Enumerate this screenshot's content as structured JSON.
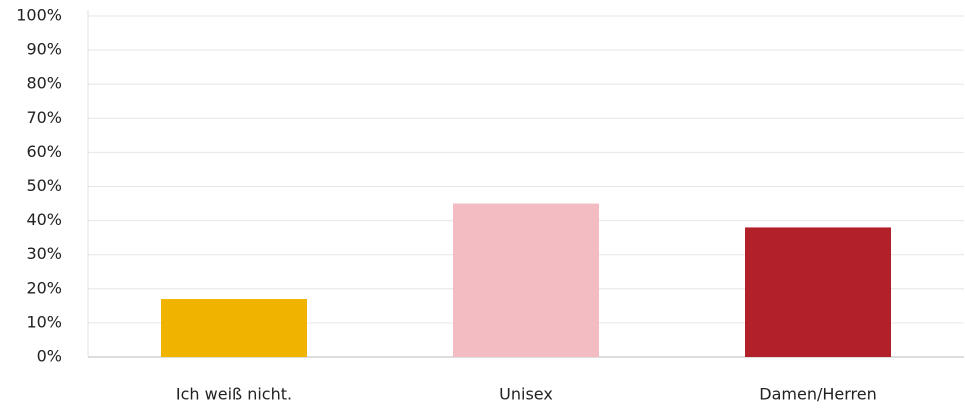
{
  "chart_data": {
    "type": "bar",
    "categories": [
      "Ich weiß nicht.",
      "Unisex",
      "Damen/Herren"
    ],
    "values": [
      17,
      45,
      38
    ],
    "colors": [
      "#f0b400",
      "#f2bcc2",
      "#b2202a"
    ],
    "ylim": [
      0,
      100
    ],
    "yticks": [
      {
        "value": 0,
        "label": "0%"
      },
      {
        "value": 10,
        "label": "10%"
      },
      {
        "value": 20,
        "label": "20%"
      },
      {
        "value": 30,
        "label": "30%"
      },
      {
        "value": 40,
        "label": "40%"
      },
      {
        "value": 50,
        "label": "50%"
      },
      {
        "value": 60,
        "label": "60%"
      },
      {
        "value": 70,
        "label": "70%"
      },
      {
        "value": 80,
        "label": "80%"
      },
      {
        "value": 90,
        "label": "90%"
      },
      {
        "value": 100,
        "label": "100%"
      }
    ],
    "grid": true
  }
}
